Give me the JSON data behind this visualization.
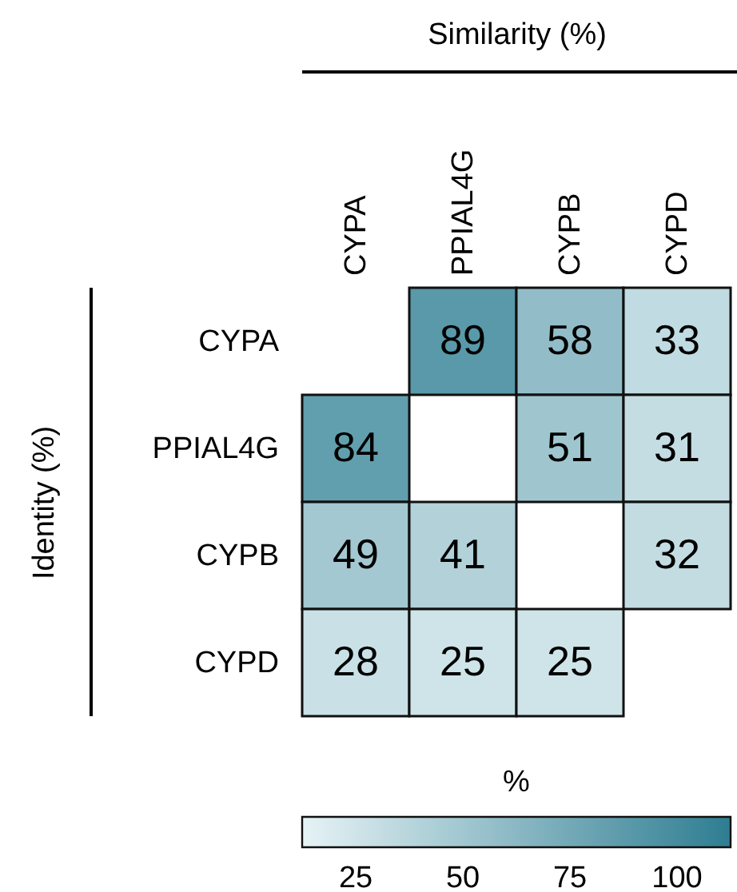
{
  "chart_data": {
    "type": "heatmap",
    "xlabel": "Similarity (%)",
    "ylabel": "Identity (%)",
    "clabel": "%",
    "categories": [
      "CYPA",
      "PPIAL4G",
      "CYPB",
      "CYPD"
    ],
    "y_categories": [
      "CYPA",
      "PPIAL4G",
      "CYPB",
      "CYPD"
    ],
    "cells": [
      [
        null,
        89,
        58,
        33
      ],
      [
        84,
        null,
        51,
        31
      ],
      [
        49,
        41,
        null,
        32
      ],
      [
        28,
        25,
        25,
        null
      ]
    ],
    "clim": [
      12.5,
      112.5
    ],
    "cticks": [
      25,
      50,
      75,
      100
    ],
    "data_labels": true
  }
}
